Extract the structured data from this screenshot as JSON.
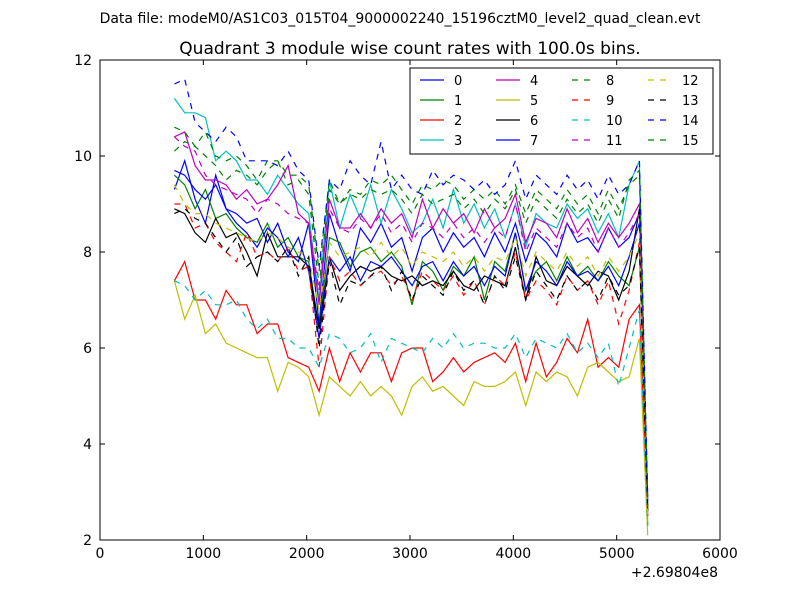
{
  "figure": {
    "suptitle": "Data file: modeM0/AS1C03_015T04_9000002240_15196cztM0_level2_quad_clean.evt"
  },
  "chart_data": {
    "type": "line",
    "title": "Quadrant 3 module wise count rates with 100.0s bins.",
    "xlabel": "",
    "ylabel": "",
    "x_offset_label": "+2.69804e8",
    "xlim": [
      0,
      6000
    ],
    "ylim": [
      2,
      12
    ],
    "xticks": [
      0,
      1000,
      2000,
      3000,
      4000,
      5000,
      6000
    ],
    "yticks": [
      2,
      4,
      6,
      8,
      10,
      12
    ],
    "xtick_labels": [
      "0",
      "1000",
      "2000",
      "3000",
      "4000",
      "5000",
      "6000"
    ],
    "ytick_labels": [
      "2",
      "4",
      "6",
      "8",
      "10",
      "12"
    ],
    "grid": false,
    "legend_position": "top-right",
    "x": [
      720,
      820,
      920,
      1020,
      1120,
      1220,
      1320,
      1420,
      1520,
      1620,
      1720,
      1820,
      1920,
      2020,
      2120,
      2220,
      2320,
      2420,
      2520,
      2620,
      2720,
      2820,
      2920,
      3020,
      3120,
      3220,
      3320,
      3420,
      3520,
      3620,
      3720,
      3820,
      3920,
      4020,
      4120,
      4220,
      4320,
      4420,
      4520,
      4620,
      4720,
      4820,
      4920,
      5020,
      5120,
      5220,
      5300
    ],
    "series": [
      {
        "name": "0",
        "color": "#0000ff",
        "dash": "solid",
        "values": [
          9.3,
          9.9,
          9.1,
          8.6,
          9.6,
          8.9,
          8.8,
          8.6,
          8.7,
          8.2,
          8.6,
          8.0,
          7.8,
          8.6,
          6.5,
          8.8,
          8.1,
          7.6,
          8.5,
          8.2,
          8.6,
          8.1,
          8.3,
          7.6,
          8.3,
          8.5,
          8.0,
          8.4,
          8.1,
          8.3,
          7.9,
          8.4,
          8.0,
          8.6,
          7.8,
          8.4,
          8.2,
          7.9,
          8.6,
          8.2,
          8.3,
          8.0,
          8.5,
          8.1,
          8.3,
          8.8,
          2.8
        ]
      },
      {
        "name": "1",
        "color": "#008000",
        "dash": "solid",
        "values": [
          9.6,
          9.4,
          8.9,
          9.3,
          8.7,
          8.8,
          8.5,
          8.3,
          8.2,
          8.6,
          8.1,
          8.3,
          7.9,
          7.8,
          6.4,
          8.3,
          8.2,
          7.7,
          8.0,
          8.1,
          7.8,
          8.0,
          7.7,
          6.9,
          7.8,
          7.6,
          7.2,
          7.7,
          7.5,
          7.9,
          7.0,
          7.8,
          7.6,
          8.4,
          7.2,
          7.6,
          7.8,
          7.4,
          7.9,
          7.5,
          7.7,
          7.4,
          7.8,
          7.5,
          7.3,
          8.1,
          2.6
        ]
      },
      {
        "name": "2",
        "color": "#ff0000",
        "dash": "solid",
        "values": [
          7.4,
          7.8,
          7.0,
          7.0,
          6.6,
          7.2,
          6.9,
          6.9,
          6.3,
          6.5,
          6.5,
          5.8,
          5.7,
          5.6,
          5.1,
          6.0,
          5.3,
          5.9,
          5.5,
          5.9,
          5.9,
          5.3,
          5.9,
          6.0,
          6.0,
          5.3,
          5.5,
          5.8,
          5.5,
          5.7,
          5.8,
          5.9,
          5.7,
          6.1,
          5.3,
          6.1,
          5.4,
          5.7,
          6.2,
          5.9,
          6.6,
          5.6,
          5.8,
          5.6,
          6.6,
          6.9,
          2.5
        ]
      },
      {
        "name": "3",
        "color": "#00bfbf",
        "dash": "solid",
        "values": [
          11.2,
          10.9,
          10.9,
          10.8,
          9.9,
          10.1,
          9.9,
          9.5,
          9.5,
          9.2,
          9.6,
          9.3,
          9.0,
          8.8,
          7.0,
          9.5,
          8.5,
          9.2,
          8.7,
          9.4,
          8.6,
          9.3,
          8.9,
          8.4,
          8.6,
          9.1,
          8.5,
          9.3,
          8.6,
          9.0,
          8.5,
          8.9,
          8.3,
          9.0,
          8.1,
          8.8,
          8.6,
          8.5,
          9.0,
          8.7,
          8.9,
          8.4,
          8.8,
          8.3,
          9.4,
          9.9,
          2.3
        ]
      },
      {
        "name": "4",
        "color": "#bf00bf",
        "dash": "solid",
        "values": [
          10.4,
          10.5,
          9.8,
          9.5,
          9.5,
          9.4,
          9.1,
          9.3,
          9.0,
          9.1,
          9.4,
          9.8,
          8.8,
          8.6,
          6.9,
          9.1,
          8.5,
          8.5,
          8.8,
          8.5,
          8.9,
          8.6,
          8.8,
          8.3,
          9.1,
          8.5,
          8.9,
          8.6,
          8.8,
          8.4,
          8.9,
          8.5,
          8.7,
          9.2,
          8.2,
          8.7,
          8.6,
          8.3,
          8.9,
          8.4,
          8.7,
          8.2,
          8.6,
          8.3,
          8.6,
          9.0,
          2.7
        ]
      },
      {
        "name": "5",
        "color": "#bfbf00",
        "dash": "solid",
        "values": [
          7.4,
          6.6,
          7.1,
          6.3,
          6.5,
          6.1,
          6.0,
          5.9,
          5.8,
          5.8,
          5.1,
          5.7,
          5.6,
          5.4,
          4.6,
          5.4,
          5.2,
          5.0,
          5.3,
          5.0,
          5.2,
          5.0,
          4.6,
          5.2,
          5.4,
          5.1,
          5.2,
          5.0,
          4.8,
          5.3,
          5.2,
          5.2,
          5.3,
          5.5,
          4.8,
          5.5,
          5.3,
          5.5,
          5.4,
          5.0,
          5.6,
          5.7,
          5.5,
          5.3,
          5.4,
          6.2,
          2.1
        ]
      },
      {
        "name": "6",
        "color": "#000000",
        "dash": "solid",
        "values": [
          8.9,
          8.8,
          8.4,
          8.2,
          8.7,
          8.3,
          8.4,
          8.0,
          7.5,
          8.4,
          7.9,
          7.9,
          7.9,
          7.7,
          6.4,
          7.9,
          7.2,
          7.5,
          7.7,
          7.6,
          7.7,
          7.5,
          7.4,
          7.5,
          7.3,
          7.4,
          7.3,
          7.6,
          7.3,
          7.2,
          7.5,
          7.4,
          7.3,
          8.1,
          7.0,
          7.9,
          7.4,
          7.3,
          7.7,
          7.5,
          7.3,
          7.6,
          7.5,
          7.0,
          7.6,
          8.9,
          2.6
        ]
      },
      {
        "name": "7",
        "color": "#0000ff",
        "dash": "solid",
        "values": [
          9.7,
          9.6,
          9.3,
          9.1,
          9.4,
          8.9,
          8.6,
          8.4,
          8.1,
          8.5,
          8.3,
          7.9,
          8.3,
          7.6,
          6.2,
          7.9,
          7.6,
          7.9,
          7.4,
          7.8,
          7.7,
          7.9,
          7.6,
          7.3,
          7.7,
          7.8,
          7.4,
          7.8,
          7.5,
          7.7,
          7.3,
          7.7,
          7.5,
          8.4,
          7.2,
          7.8,
          7.6,
          7.3,
          7.8,
          7.5,
          7.6,
          7.4,
          7.7,
          7.3,
          7.9,
          8.6,
          2.9
        ]
      },
      {
        "name": "8",
        "color": "#008000",
        "dash": "dashed",
        "values": [
          10.6,
          10.5,
          10.2,
          10.5,
          10.0,
          9.9,
          10.0,
          9.8,
          9.5,
          9.9,
          9.9,
          9.6,
          9.6,
          9.4,
          7.6,
          9.5,
          9.0,
          9.3,
          9.2,
          9.5,
          9.4,
          9.6,
          9.3,
          9.0,
          9.4,
          9.3,
          9.5,
          9.4,
          9.1,
          9.3,
          9.1,
          9.3,
          9.0,
          9.4,
          8.8,
          9.3,
          9.1,
          8.9,
          9.3,
          9.0,
          9.2,
          8.8,
          9.3,
          8.9,
          9.4,
          9.6,
          2.8
        ]
      },
      {
        "name": "9",
        "color": "#ff0000",
        "dash": "dashed",
        "values": [
          9.0,
          9.0,
          8.5,
          8.6,
          8.2,
          8.0,
          7.8,
          8.4,
          7.9,
          8.0,
          7.8,
          8.1,
          7.6,
          7.7,
          5.6,
          7.9,
          7.4,
          7.6,
          7.3,
          7.5,
          7.6,
          7.3,
          7.5,
          7.0,
          7.6,
          7.4,
          7.2,
          7.5,
          7.1,
          7.4,
          6.9,
          7.5,
          7.3,
          8.0,
          7.0,
          7.4,
          7.2,
          6.9,
          7.5,
          7.2,
          7.4,
          6.9,
          7.4,
          6.5,
          7.2,
          8.2,
          2.5
        ]
      },
      {
        "name": "10",
        "color": "#00bfbf",
        "dash": "dashed",
        "values": [
          7.4,
          7.3,
          7.0,
          7.2,
          6.9,
          6.9,
          7.0,
          6.6,
          6.4,
          6.6,
          6.2,
          6.2,
          6.0,
          6.0,
          5.6,
          6.3,
          6.2,
          5.9,
          6.0,
          6.3,
          5.7,
          6.2,
          6.1,
          6.0,
          5.9,
          6.2,
          6.0,
          6.3,
          6.0,
          6.1,
          6.1,
          6.0,
          6.0,
          6.3,
          5.8,
          6.2,
          6.1,
          6.0,
          6.3,
          5.9,
          6.1,
          5.8,
          6.1,
          5.2,
          6.0,
          6.8,
          2.3
        ]
      },
      {
        "name": "11",
        "color": "#bf00bf",
        "dash": "dashed",
        "values": [
          10.4,
          10.2,
          10.1,
          9.6,
          9.4,
          9.3,
          9.2,
          9.1,
          8.8,
          9.1,
          9.0,
          8.8,
          8.7,
          8.6,
          7.2,
          8.9,
          8.5,
          8.4,
          8.7,
          8.5,
          8.8,
          8.4,
          8.6,
          8.2,
          8.6,
          8.5,
          8.3,
          8.6,
          8.3,
          8.5,
          8.2,
          8.5,
          8.3,
          9.0,
          8.0,
          8.5,
          8.3,
          8.1,
          8.6,
          8.3,
          8.5,
          8.0,
          8.5,
          8.1,
          8.4,
          8.8,
          2.7
        ]
      },
      {
        "name": "12",
        "color": "#bfbf00",
        "dash": "dashed",
        "values": [
          9.4,
          9.0,
          8.8,
          8.8,
          8.6,
          8.5,
          8.4,
          8.3,
          8.2,
          8.4,
          8.3,
          8.1,
          8.0,
          7.9,
          6.8,
          8.2,
          7.9,
          8.0,
          8.1,
          7.9,
          8.2,
          7.9,
          8.1,
          7.7,
          8.0,
          7.9,
          7.8,
          8.0,
          7.7,
          7.9,
          7.6,
          7.9,
          7.8,
          8.3,
          7.5,
          8.0,
          7.8,
          7.6,
          8.0,
          7.7,
          7.9,
          7.5,
          7.9,
          7.6,
          7.9,
          8.4,
          2.4
        ]
      },
      {
        "name": "13",
        "color": "#000000",
        "dash": "dashed",
        "values": [
          8.8,
          8.9,
          8.7,
          8.6,
          8.3,
          8.0,
          8.3,
          7.7,
          7.9,
          8.0,
          7.8,
          8.1,
          7.5,
          7.9,
          6.0,
          7.8,
          6.9,
          7.4,
          7.3,
          7.5,
          7.7,
          7.2,
          7.6,
          7.0,
          7.5,
          7.3,
          7.1,
          7.6,
          7.2,
          7.4,
          6.9,
          7.5,
          7.2,
          7.9,
          7.0,
          7.6,
          7.3,
          7.0,
          7.5,
          7.2,
          7.4,
          7.0,
          7.5,
          7.1,
          7.3,
          8.1,
          2.6
        ]
      },
      {
        "name": "14",
        "color": "#0000ff",
        "dash": "dashed",
        "values": [
          11.5,
          11.6,
          10.7,
          10.5,
          10.3,
          10.6,
          10.4,
          9.9,
          9.9,
          9.9,
          9.8,
          10.1,
          9.7,
          9.5,
          7.7,
          9.5,
          9.3,
          9.9,
          9.6,
          9.4,
          10.3,
          9.3,
          9.6,
          9.3,
          9.2,
          9.7,
          9.4,
          9.6,
          9.5,
          9.3,
          9.5,
          9.2,
          9.4,
          9.9,
          9.1,
          9.6,
          9.4,
          9.2,
          9.6,
          9.3,
          9.5,
          9.1,
          9.6,
          9.2,
          9.4,
          9.9,
          2.9
        ]
      },
      {
        "name": "15",
        "color": "#008000",
        "dash": "dashed",
        "values": [
          10.1,
          10.3,
          10.2,
          10.0,
          9.8,
          9.5,
          9.7,
          9.6,
          9.4,
          9.7,
          9.9,
          9.4,
          9.5,
          9.2,
          7.3,
          9.3,
          9.0,
          9.2,
          9.1,
          9.3,
          9.2,
          9.3,
          9.1,
          8.8,
          9.2,
          9.0,
          9.1,
          9.2,
          8.9,
          9.1,
          8.8,
          9.1,
          8.9,
          9.3,
          8.6,
          9.1,
          8.9,
          8.7,
          9.1,
          8.8,
          9.0,
          8.6,
          9.1,
          8.7,
          9.5,
          9.7,
          2.7
        ]
      }
    ]
  }
}
